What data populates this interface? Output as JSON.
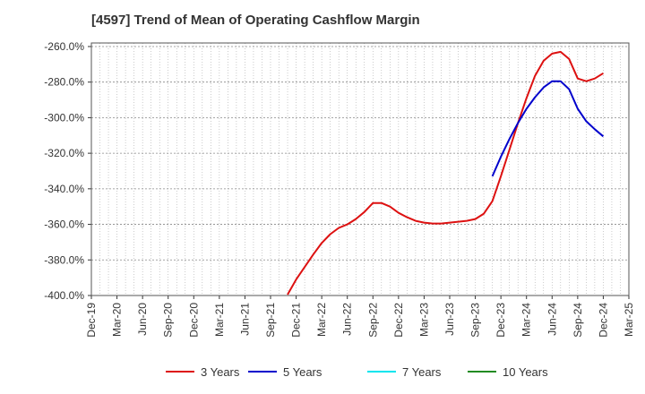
{
  "chart_data": {
    "type": "line",
    "title": "[4597]  Trend of Mean of Operating Cashflow Margin",
    "xlabel": "",
    "ylabel": "",
    "x_tick_labels": [
      "Dec-19",
      "Mar-20",
      "Jun-20",
      "Sep-20",
      "Dec-20",
      "Mar-21",
      "Jun-21",
      "Sep-21",
      "Dec-21",
      "Mar-22",
      "Jun-22",
      "Sep-22",
      "Dec-22",
      "Mar-23",
      "Jun-23",
      "Sep-23",
      "Dec-23",
      "Mar-24",
      "Jun-24",
      "Sep-24",
      "Dec-24",
      "Mar-25"
    ],
    "y_tick_labels": [
      "-260.0%",
      "-280.0%",
      "-300.0%",
      "-320.0%",
      "-340.0%",
      "-360.0%",
      "-380.0%",
      "-400.0%"
    ],
    "ylim": [
      -400,
      -258
    ],
    "grid": true,
    "legend_position": "bottom",
    "series": [
      {
        "name": "3 Years",
        "color": "#dd1111",
        "x": [
          "Nov-21",
          "Dec-21",
          "Jan-22",
          "Feb-22",
          "Mar-22",
          "Apr-22",
          "May-22",
          "Jun-22",
          "Jul-22",
          "Aug-22",
          "Sep-22",
          "Oct-22",
          "Nov-22",
          "Dec-22",
          "Jan-23",
          "Feb-23",
          "Mar-23",
          "Apr-23",
          "May-23",
          "Jun-23",
          "Jul-23",
          "Aug-23",
          "Sep-23",
          "Oct-23",
          "Nov-23",
          "Dec-23",
          "Jan-24",
          "Feb-24",
          "Mar-24",
          "Apr-24",
          "May-24",
          "Jun-24",
          "Jul-24",
          "Aug-24",
          "Sep-24",
          "Oct-24",
          "Nov-24",
          "Dec-24"
        ],
        "values": [
          -399.5,
          -391,
          -384,
          -377,
          -370.5,
          -365.5,
          -362,
          -360,
          -357,
          -353,
          -348,
          -348,
          -350,
          -353.5,
          -356,
          -358,
          -359,
          -359.5,
          -359.5,
          -359,
          -358.5,
          -358,
          -357,
          -354,
          -347,
          -333,
          -318,
          -303,
          -289,
          -276.5,
          -268,
          -264,
          -263,
          -267,
          -278,
          -279.5,
          -278,
          -275
        ]
      },
      {
        "name": "5 Years",
        "color": "#0000cc",
        "x": [
          "Nov-23",
          "Dec-23",
          "Jan-24",
          "Feb-24",
          "Mar-24",
          "Apr-24",
          "May-24",
          "Jun-24",
          "Jul-24",
          "Aug-24",
          "Sep-24",
          "Oct-24",
          "Nov-24",
          "Dec-24"
        ],
        "values": [
          -333,
          -322,
          -312,
          -303,
          -295,
          -288.5,
          -283,
          -279.5,
          -279.5,
          -284,
          -295,
          -302,
          -306.5,
          -310.5
        ]
      },
      {
        "name": "7 Years",
        "color": "#00e5ee",
        "x": [],
        "values": []
      },
      {
        "name": "10 Years",
        "color": "#228b22",
        "x": [],
        "values": []
      }
    ]
  }
}
